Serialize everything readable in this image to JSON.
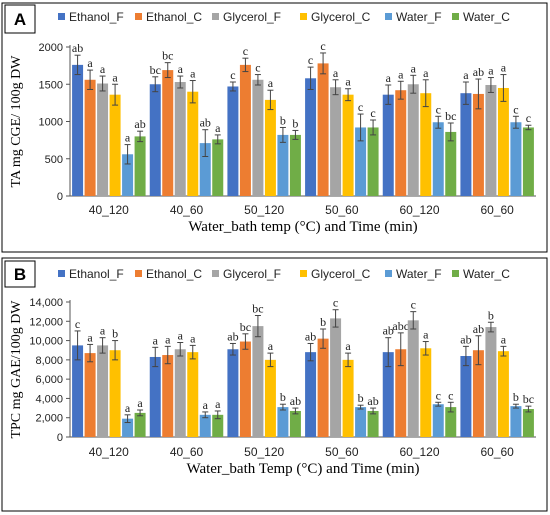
{
  "colors": {
    "Ethanol_F": "#4472C4",
    "Ethanol_C": "#ED7D31",
    "Glycerol_F": "#A5A5A5",
    "Glycerol_C": "#FFC000",
    "Water_F": "#5B9BD5",
    "Water_C": "#70AD47"
  },
  "chart_data": [
    {
      "panel_label": "A",
      "type": "bar",
      "xlabel": "Water_bath temp (°C) and Time (min)",
      "ylabel": "TA mg CGE/ 100g DW",
      "ylim": [
        0,
        2000
      ],
      "yticks": [
        0,
        500,
        1000,
        1500,
        2000
      ],
      "ytick_labels": [
        "0",
        "500",
        "1000",
        "1500",
        "2000"
      ],
      "grid": false,
      "legend_position": "top",
      "categories": [
        "40_120",
        "40_60",
        "50_120",
        "50_60",
        "60_120",
        "60_60"
      ],
      "series": [
        {
          "name": "Ethanol_F",
          "values": [
            1760,
            1500,
            1470,
            1580,
            1360,
            1380
          ],
          "errors": [
            130,
            100,
            60,
            150,
            130,
            150
          ],
          "letters": [
            "ab",
            "bc",
            "c",
            "c",
            "a",
            "a"
          ]
        },
        {
          "name": "Ethanol_C",
          "values": [
            1560,
            1690,
            1760,
            1780,
            1420,
            1370
          ],
          "errors": [
            130,
            100,
            90,
            140,
            120,
            200
          ],
          "letters": [
            "a",
            "bc",
            "c",
            "c",
            "a",
            "ab"
          ]
        },
        {
          "name": "Glycerol_F",
          "values": [
            1510,
            1530,
            1560,
            1460,
            1500,
            1490
          ],
          "errors": [
            100,
            80,
            70,
            100,
            120,
            100
          ],
          "letters": [
            "a",
            "a",
            "c",
            "a",
            "a",
            "a"
          ]
        },
        {
          "name": "Glycerol_C",
          "values": [
            1360,
            1400,
            1290,
            1360,
            1380,
            1450
          ],
          "errors": [
            140,
            150,
            130,
            80,
            180,
            180
          ],
          "letters": [
            "a",
            "a",
            "a",
            "a",
            "a",
            "a"
          ]
        },
        {
          "name": "Water_F",
          "values": [
            560,
            710,
            820,
            920,
            990,
            990
          ],
          "errors": [
            130,
            180,
            100,
            180,
            80,
            80
          ],
          "letters": [
            "a",
            "ab",
            "b",
            "c",
            "c",
            "c"
          ]
        },
        {
          "name": "Water_C",
          "values": [
            800,
            760,
            820,
            920,
            860,
            920
          ],
          "errors": [
            70,
            60,
            60,
            100,
            120,
            30
          ],
          "letters": [
            "ab",
            "a",
            "b",
            "c",
            "bc",
            "c"
          ]
        }
      ]
    },
    {
      "panel_label": "B",
      "type": "bar",
      "xlabel": "Water_bath Temp (°C) and Time (min)",
      "ylabel": "TPC mg GAE/100g DW",
      "ylim": [
        0,
        14000
      ],
      "yticks": [
        0,
        2000,
        4000,
        6000,
        8000,
        10000,
        12000,
        14000
      ],
      "ytick_labels": [
        "0",
        "2,000",
        "4,000",
        "6,000",
        "8,000",
        "10,000",
        "12,000",
        "14,000"
      ],
      "grid": false,
      "legend_position": "top",
      "categories": [
        "40_120",
        "40_60",
        "50_120",
        "50_60",
        "60_120",
        "60_60"
      ],
      "series": [
        {
          "name": "Ethanol_F",
          "values": [
            9500,
            8300,
            9100,
            8800,
            8800,
            8400
          ],
          "errors": [
            1500,
            1000,
            600,
            900,
            1500,
            1000
          ],
          "letters": [
            "c",
            "a",
            "ab",
            "ab",
            "ab",
            "ab"
          ]
        },
        {
          "name": "Ethanol_C",
          "values": [
            8700,
            8500,
            9900,
            10200,
            9100,
            9000
          ],
          "errors": [
            900,
            900,
            800,
            1000,
            1700,
            1500
          ],
          "letters": [
            "a",
            "a",
            "bc",
            "b",
            "abc",
            "ab"
          ]
        },
        {
          "name": "Glycerol_F",
          "values": [
            9500,
            9100,
            11500,
            12300,
            12100,
            11400
          ],
          "errors": [
            800,
            700,
            1100,
            900,
            900,
            500
          ],
          "letters": [
            "a",
            "a",
            "bc",
            "c",
            "c",
            "b"
          ]
        },
        {
          "name": "Glycerol_C",
          "values": [
            9000,
            8800,
            8000,
            8000,
            9200,
            8900
          ],
          "errors": [
            1000,
            700,
            700,
            700,
            700,
            500
          ],
          "letters": [
            "b",
            "a",
            "a",
            "a",
            "a",
            "a"
          ]
        },
        {
          "name": "Water_F",
          "values": [
            1900,
            2300,
            3100,
            3100,
            3400,
            3200
          ],
          "errors": [
            400,
            300,
            300,
            200,
            200,
            200
          ],
          "letters": [
            "a",
            "a",
            "b",
            "b",
            "c",
            "b"
          ]
        },
        {
          "name": "Water_C",
          "values": [
            2500,
            2300,
            2700,
            2700,
            3100,
            2900
          ],
          "errors": [
            300,
            400,
            300,
            300,
            500,
            300
          ],
          "letters": [
            "a",
            "a",
            "ab",
            "ab",
            "c",
            "bc"
          ]
        }
      ]
    }
  ]
}
